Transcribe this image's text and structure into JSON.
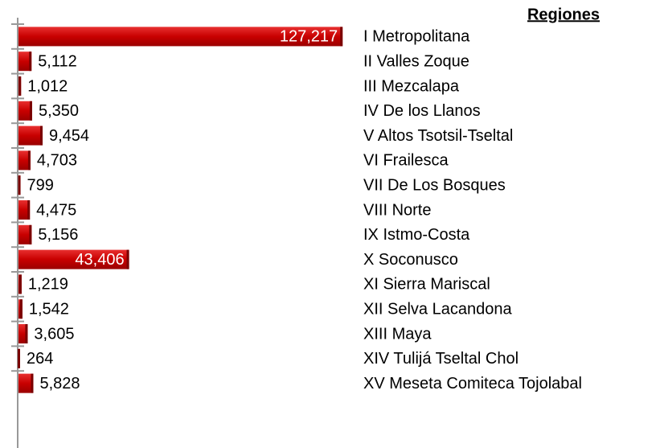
{
  "chart_data": {
    "type": "barh",
    "legend_title": "Regiones",
    "categories": [
      "I Metropolitana",
      "II Valles Zoque",
      "III Mezcalapa",
      "IV De los Llanos",
      "V Altos Tsotsil-Tseltal",
      "VI Frailesca",
      "VII De Los Bosques",
      "VIII Norte",
      "IX Istmo-Costa",
      "X Soconusco",
      "XI Sierra Mariscal",
      "XII Selva Lacandona",
      "XIII Maya",
      "XIV Tulijá Tseltal Chol",
      "XV Meseta Comiteca Tojolabal"
    ],
    "values": [
      127217,
      5112,
      1012,
      5350,
      9454,
      4703,
      799,
      4475,
      5156,
      43406,
      1219,
      1542,
      3605,
      264,
      5828
    ],
    "value_labels": [
      "127,217",
      "5,112",
      "1,012",
      "5,350",
      "9,454",
      "4,703",
      "799",
      "4,475",
      "5,156",
      "43,406",
      "1,219",
      "1,542",
      "3,605",
      "264",
      "5,828"
    ],
    "color": "#d40000",
    "xlim": [
      0,
      130000
    ]
  }
}
